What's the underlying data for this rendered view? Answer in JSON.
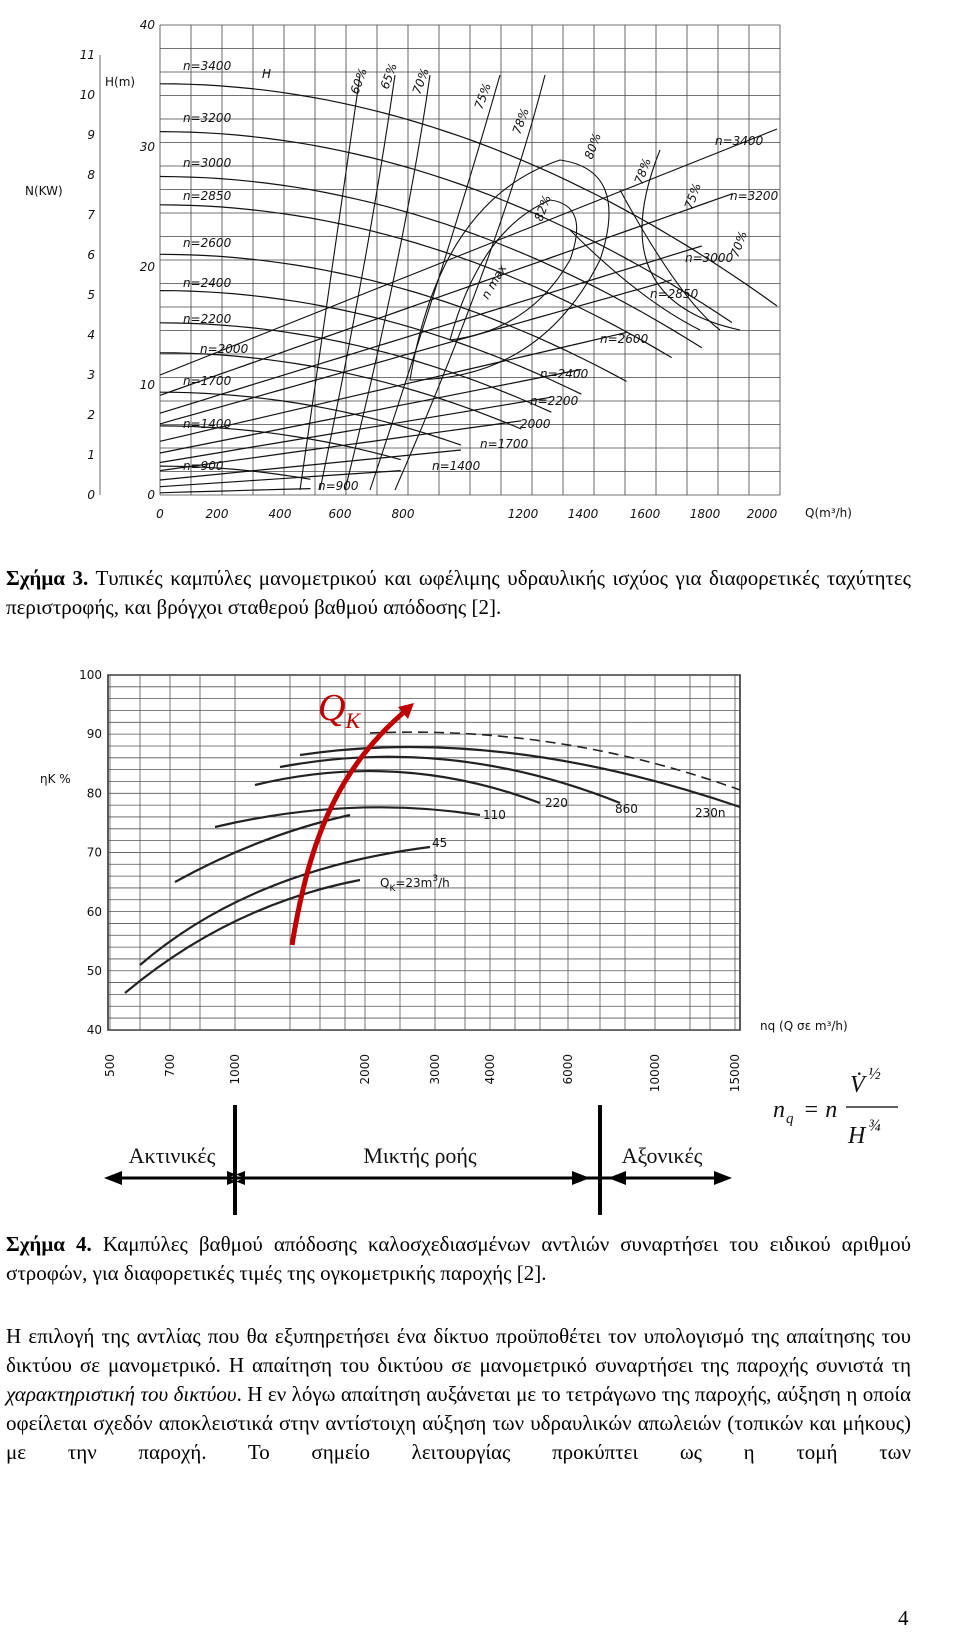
{
  "figure3": {
    "y_label_h": "H(m)",
    "y_label_n": "N(KW)",
    "x_label": "Q(m³/h)",
    "head_label": "H",
    "h_ticks": [
      "0",
      "10",
      "20",
      "30",
      "40"
    ],
    "n_ticks": [
      "0",
      "1",
      "2",
      "3",
      "4",
      "5",
      "6",
      "7",
      "8",
      "9",
      "10",
      "11"
    ],
    "q_ticks": [
      "0",
      "200",
      "400",
      "600",
      "800",
      "1200",
      "1400",
      "1600",
      "1800",
      "2000"
    ],
    "head_curve_labels": [
      "n=3400",
      "n=3200",
      "n=3000",
      "n=2850",
      "n=2600",
      "n=2400",
      "n=2200",
      "n=2000",
      "n=1700",
      "n=1400",
      "n=900"
    ],
    "power_curve_labels": [
      "n=3400",
      "n=3200",
      "n=3000",
      "n=2850",
      "n=2600",
      "n=2400",
      "n=2200",
      "2000",
      "n=1700",
      "n=1400",
      "n=900"
    ],
    "efficiency_labels": [
      "60%",
      "65%",
      "70%",
      "75%",
      "78%",
      "80%",
      "82%",
      "78%",
      "75%",
      "70%"
    ],
    "nmax_label": "n max"
  },
  "caption3": {
    "label": "Σχήμα 3.",
    "text": "Τυπικές καμπύλες μανομετρικού και ωφέλιμης υδραυλικής ισχύος για διαφορετικές ταχύτητες περιστροφής, και βρόγχοι σταθερού βαθμού απόδοσης [2]."
  },
  "figure4": {
    "y_label": "ηK %",
    "y_ticks": [
      "100",
      "90",
      "80",
      "70",
      "60",
      "50",
      "40"
    ],
    "x_ticks": [
      "500",
      "700",
      "1000",
      "2000",
      "3000",
      "4000",
      "6000",
      "10000",
      "15000"
    ],
    "x_label": "nq (Q σε m³/h)",
    "curve_labels": [
      "110",
      "220",
      "860",
      "230n",
      "45"
    ],
    "qk_curve_label": {
      "q": "Q",
      "sub": "K",
      "rest": "=23m",
      "sup": "3",
      "unit": "/h"
    },
    "arrow_label": {
      "q": "Q",
      "sub": "K"
    },
    "ranges": [
      "Ακτινικές",
      "Μικτής ροής",
      "Αξονικές"
    ],
    "formula": {
      "lhs": "n",
      "lhs_sub": "q",
      "eq": "= n",
      "num": "V̇",
      "num_exp": "½",
      "den": "H",
      "den_exp": "¾"
    }
  },
  "caption4": {
    "label": "Σχήμα 4.",
    "text": "Καμπύλες βαθμού απόδοσης καλοσχεδιασμένων αντλιών συναρτήσει του ειδικού αριθμού στροφών, για διαφορετικές τιμές της ογκομετρικής παροχής [2]."
  },
  "paragraph": {
    "before": "Η επιλογή της αντλίας που θα εξυπηρετήσει ένα δίκτυο προϋποθέτει τον υπολογισμό της απαίτησης του δικτύου σε μανομετρικό. Η απαίτηση του δικτύου σε μανομετρικό συναρτήσει της παροχής συνιστά τη ",
    "italic": "χαρακτηριστική του δικτύου",
    "after": ". Η εν λόγω απαίτηση αυξάνεται με το τετράγωνο της παροχής, αύξηση η οποία οφείλεται σχεδόν αποκλειστικά στην αντίστοιχη αύξηση των υδραυλικών απωλειών (τοπικών και μήκους) με την παροχή. Το σημείο λειτουργίας προκύπτει ως η τομή των"
  },
  "page_number": "4"
}
